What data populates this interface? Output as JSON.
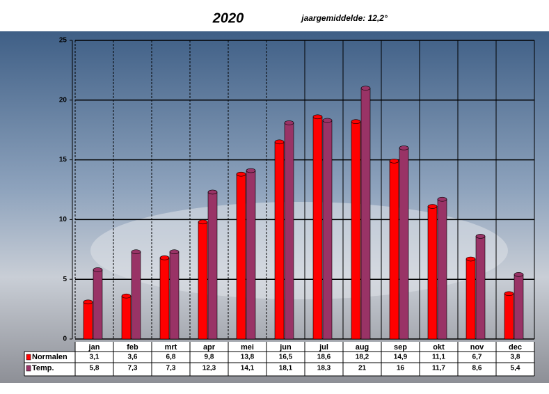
{
  "chart_data": {
    "type": "bar",
    "title": "2020",
    "subtitle": "jaargemiddelde:  12,2°",
    "categories": [
      "jan",
      "feb",
      "mrt",
      "apr",
      "mei",
      "jun",
      "jul",
      "aug",
      "sep",
      "okt",
      "nov",
      "dec"
    ],
    "series": [
      {
        "name": "Normalen",
        "color": "#ff0000",
        "values": [
          3.1,
          3.6,
          6.8,
          9.8,
          13.8,
          16.5,
          18.6,
          18.2,
          14.9,
          11.1,
          6.7,
          3.8
        ],
        "value_labels": [
          "3,1",
          "3,6",
          "6,8",
          "9,8",
          "13,8",
          "16,5",
          "18,6",
          "18,2",
          "14,9",
          "11,1",
          "6,7",
          "3,8"
        ]
      },
      {
        "name": "Temp.",
        "color": "#993366",
        "values": [
          5.8,
          7.3,
          7.3,
          12.3,
          14.1,
          18.1,
          18.3,
          21,
          16,
          11.7,
          8.6,
          5.4
        ],
        "value_labels": [
          "5,8",
          "7,3",
          "7,3",
          "12,3",
          "14,1",
          "18,1",
          "18,3",
          "21",
          "16",
          "11,7",
          "8,6",
          "5,4"
        ]
      }
    ],
    "ylim": [
      0,
      25
    ],
    "yticks": [
      0,
      5,
      10,
      15,
      20,
      25
    ],
    "grid": true
  }
}
